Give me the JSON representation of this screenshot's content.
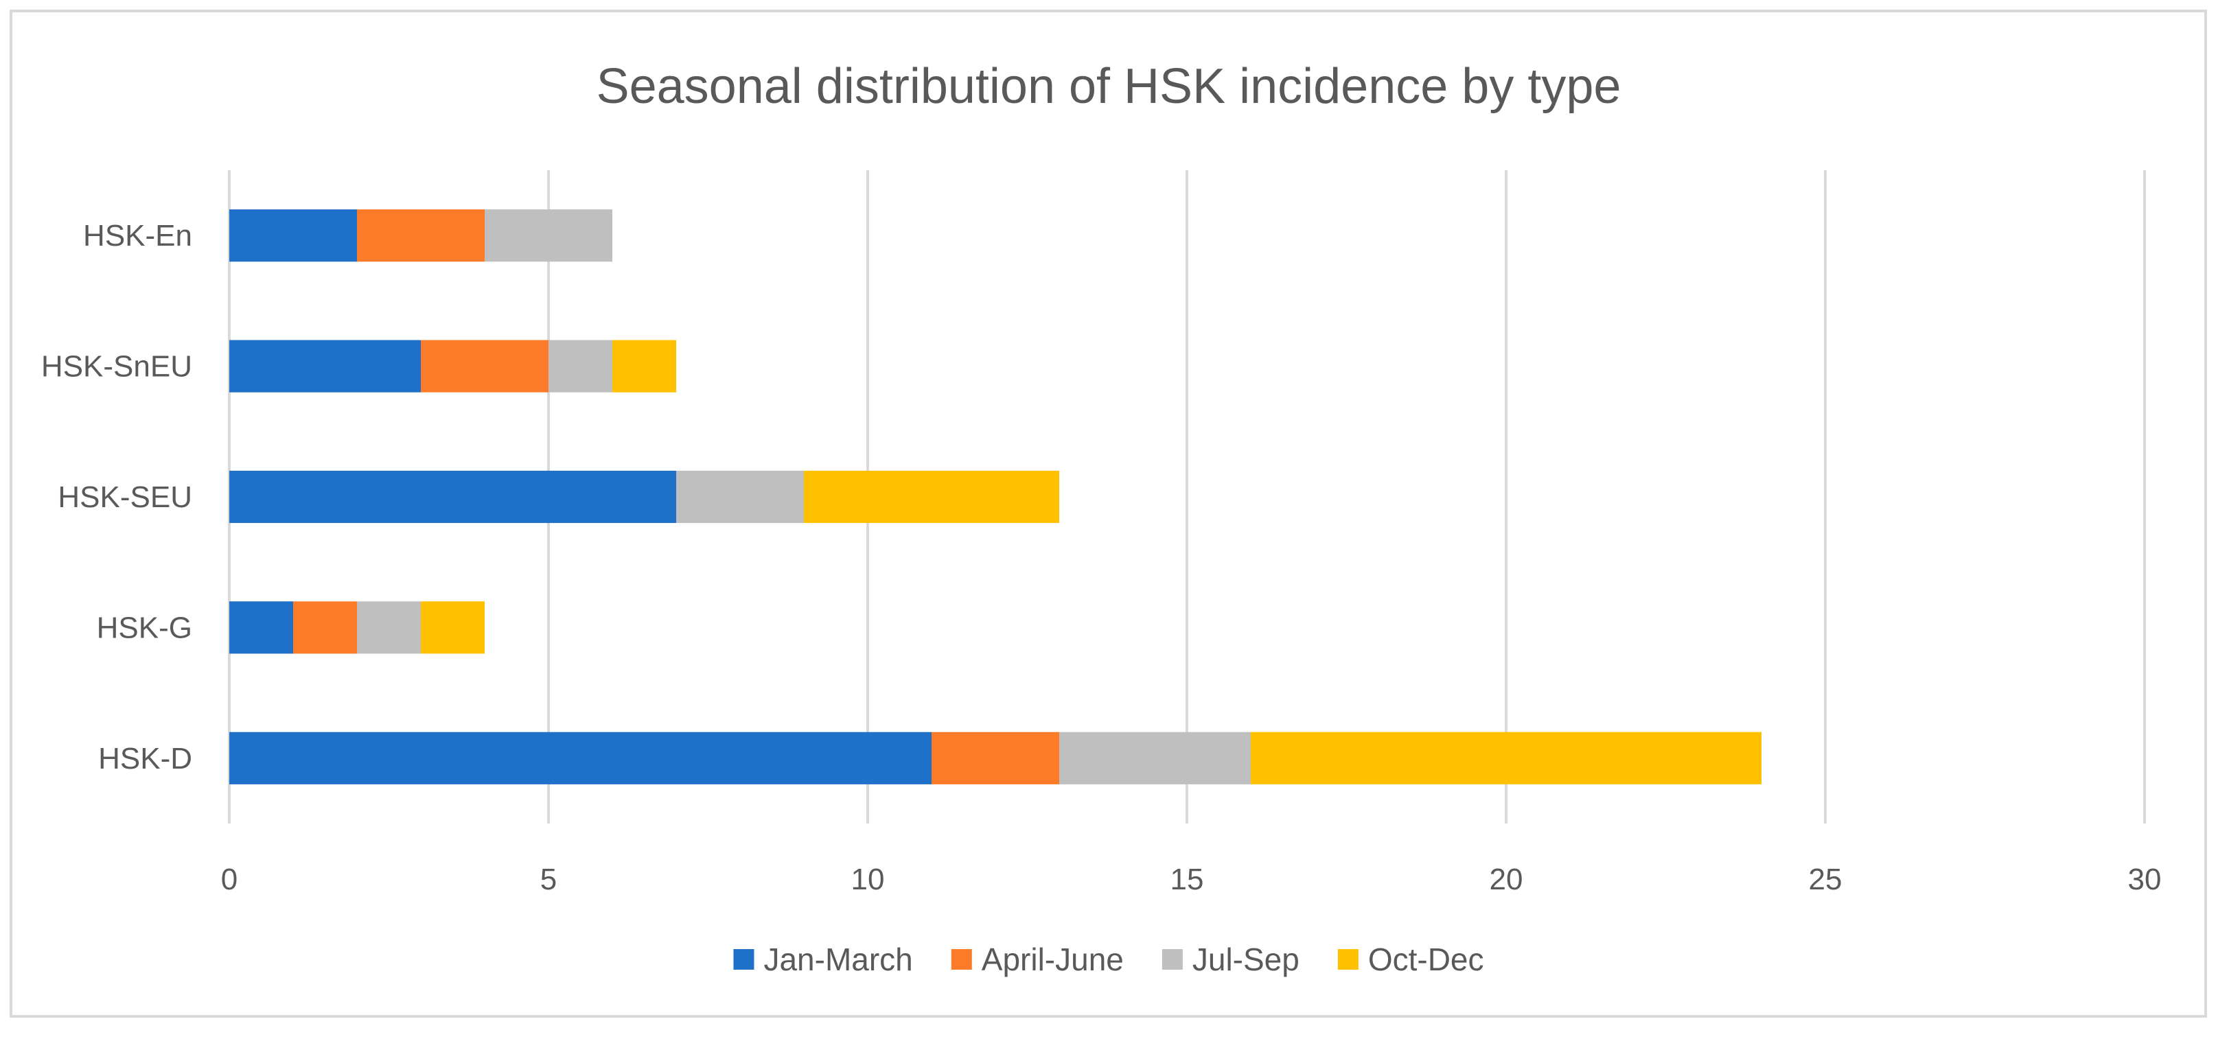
{
  "chart_data": {
    "type": "bar",
    "orientation": "horizontal",
    "stacked": true,
    "title": "Seasonal distribution of HSK incidence by type",
    "xlabel": "",
    "ylabel": "",
    "categories": [
      "HSK-En",
      "HSK-SnEU",
      "HSK-SEU",
      "HSK-G",
      "HSK-D"
    ],
    "series": [
      {
        "name": "Jan-March",
        "color": "#1f70c8",
        "values": [
          2,
          3,
          7,
          1,
          11
        ]
      },
      {
        "name": "April-June",
        "color": "#fb7b29",
        "values": [
          2,
          2,
          0,
          1,
          2
        ]
      },
      {
        "name": "Jul-Sep",
        "color": "#bfbfbf",
        "values": [
          2,
          1,
          2,
          1,
          3
        ]
      },
      {
        "name": "Oct-Dec",
        "color": "#ffc000",
        "values": [
          0,
          1,
          4,
          1,
          8
        ]
      }
    ],
    "xlim": [
      0,
      30
    ],
    "xticks": [
      0,
      5,
      10,
      15,
      20,
      25,
      30
    ],
    "grid": true,
    "legend_position": "bottom"
  }
}
